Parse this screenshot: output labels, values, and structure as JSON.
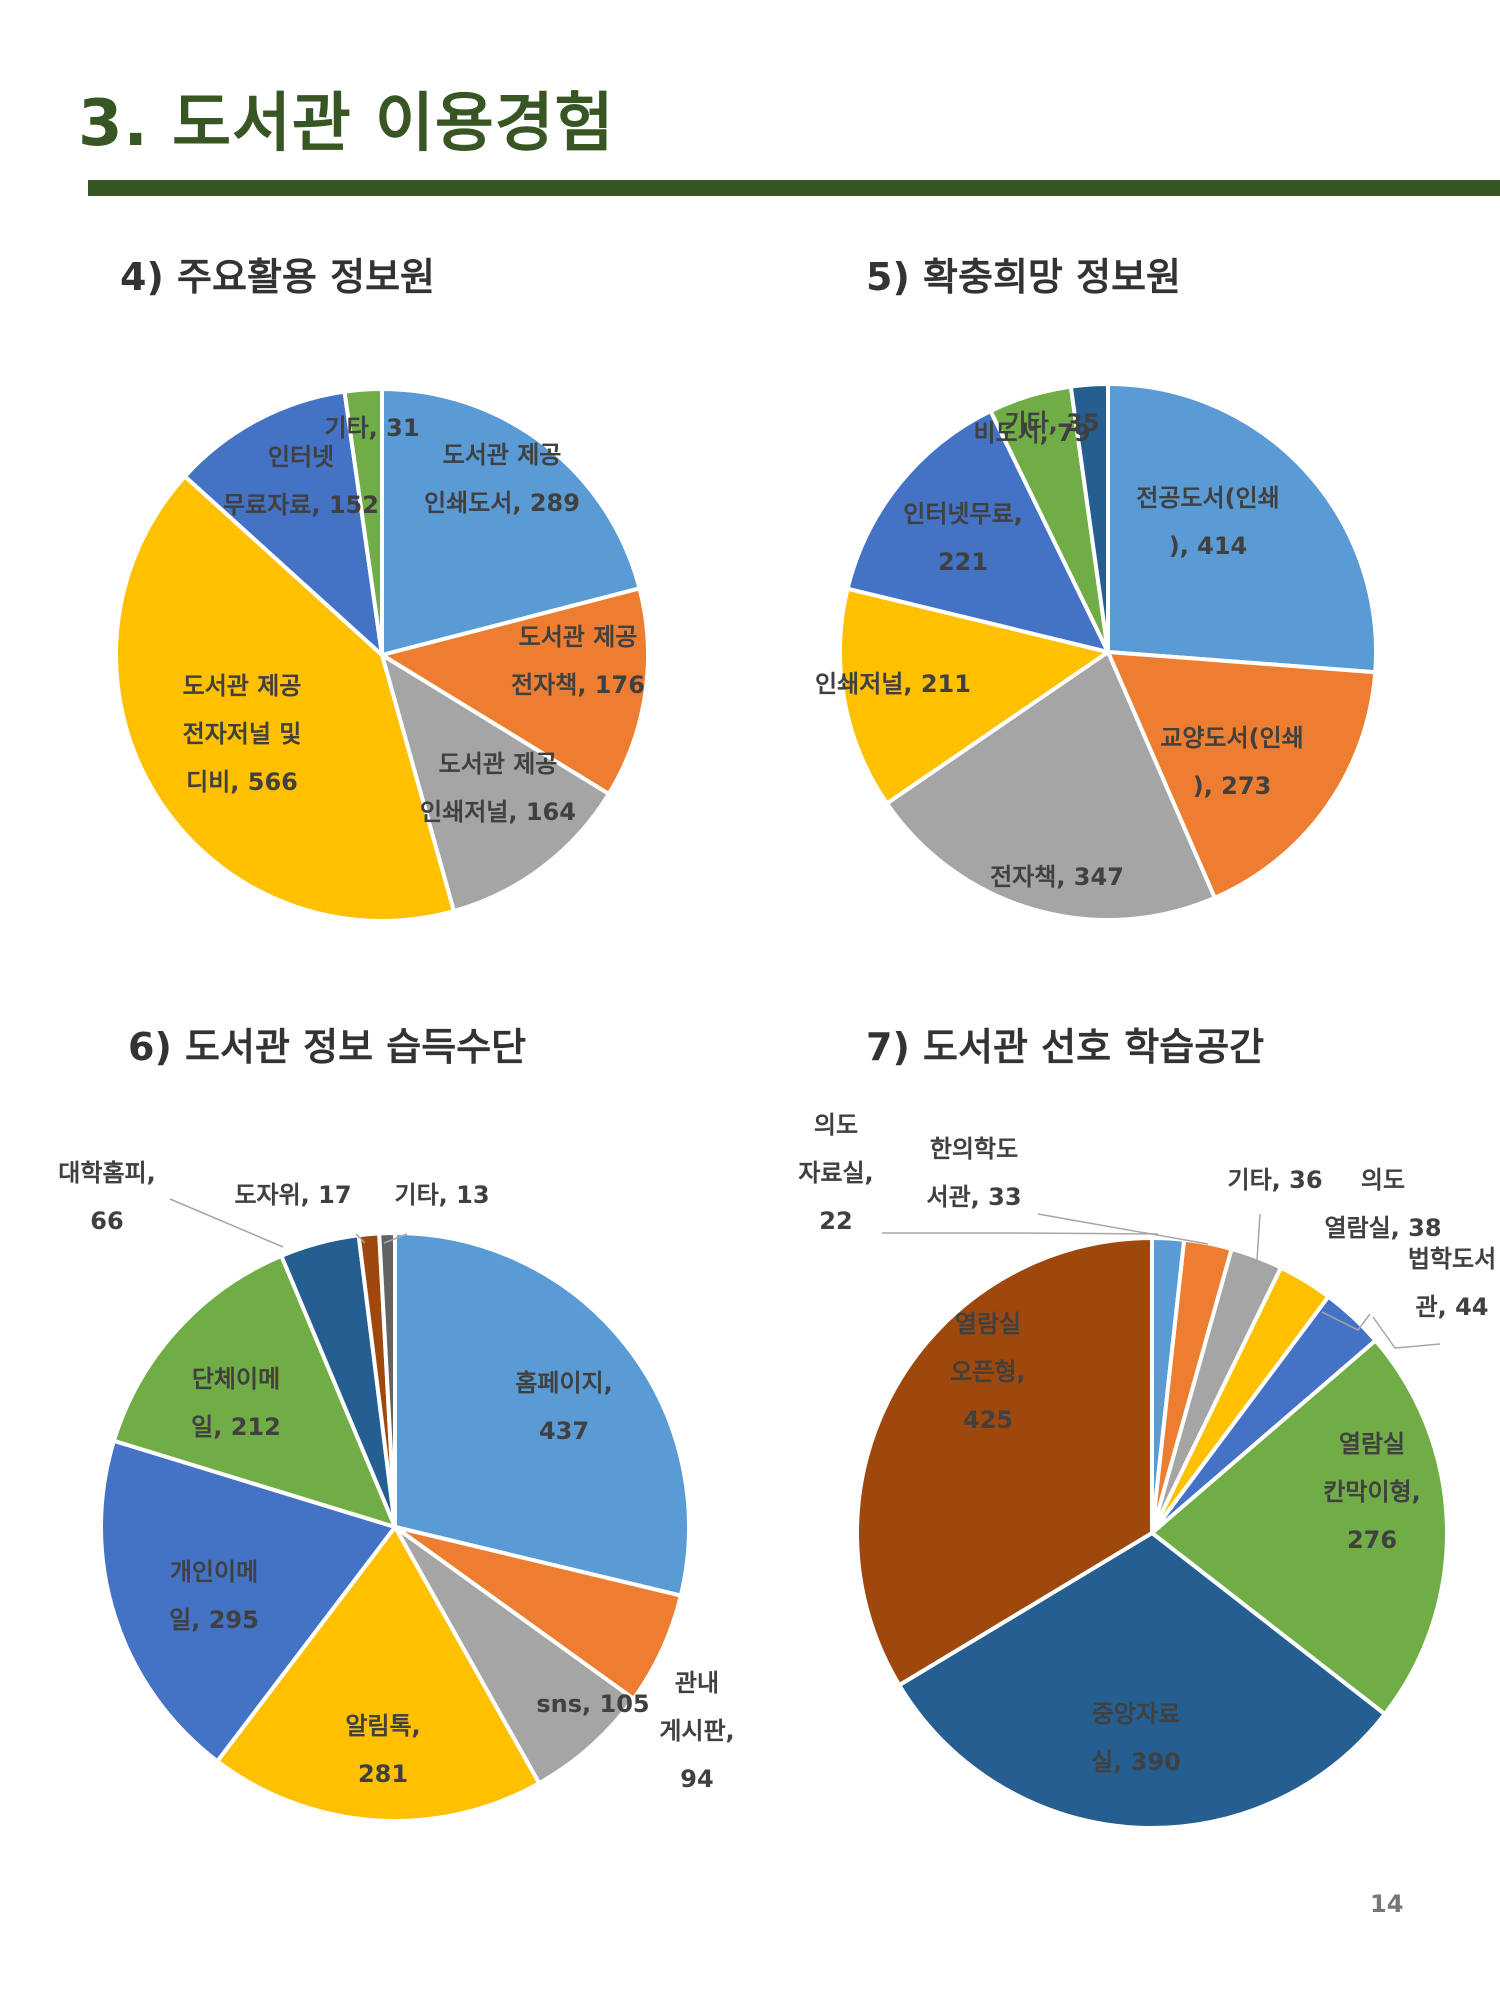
{
  "page": {
    "title": "3. 도서관 이용경험",
    "page_number": "14"
  },
  "chart_data": [
    {
      "type": "pie",
      "title": "4) 주요활용 정보원",
      "slices": [
        {
          "label": "도서관 제공 인쇄도서",
          "value": 289,
          "color": "#5B9BD5",
          "lines": [
            "도서관 제공",
            "인쇄도서, 289"
          ]
        },
        {
          "label": "도서관 제공 전자책",
          "value": 176,
          "color": "#ED7D31",
          "lines": [
            "도서관 제공",
            "전자책, 176"
          ]
        },
        {
          "label": "도서관 제공 인쇄저널",
          "value": 164,
          "color": "#A5A5A5",
          "lines": [
            "도서관 제공",
            "인쇄저널, 164"
          ]
        },
        {
          "label": "도서관 제공 전자저널 및 디비",
          "value": 566,
          "color": "#FFC000",
          "lines": [
            "도서관 제공",
            "전자저널 및",
            "디비, 566"
          ]
        },
        {
          "label": "인터넷 무료자료",
          "value": 152,
          "color": "#4472C4",
          "lines": [
            "인터넷",
            "무료자료, 152"
          ]
        },
        {
          "label": "기타",
          "value": 31,
          "color": "#70AD47",
          "lines": [
            "기타, 31"
          ]
        }
      ]
    },
    {
      "type": "pie",
      "title": "5) 확충희망 정보원",
      "slices": [
        {
          "label": "전공도서(인쇄)",
          "value": 414,
          "color": "#5B9BD5",
          "lines": [
            "전공도서(인쇄",
            "), 414"
          ]
        },
        {
          "label": "교양도서(인쇄)",
          "value": 273,
          "color": "#ED7D31",
          "lines": [
            "교양도서(인쇄",
            "), 273"
          ]
        },
        {
          "label": "전자책",
          "value": 347,
          "color": "#A5A5A5",
          "lines": [
            "전자책, 347"
          ]
        },
        {
          "label": "인쇄저널",
          "value": 211,
          "color": "#FFC000",
          "lines": [
            "인쇄저널, 211"
          ]
        },
        {
          "label": "인터넷무료",
          "value": 221,
          "color": "#4472C4",
          "lines": [
            "인터넷무료,",
            "221"
          ]
        },
        {
          "label": "비도서",
          "value": 79,
          "color": "#70AD47",
          "lines": [
            "비도서, 79"
          ]
        },
        {
          "label": "기타",
          "value": 35,
          "color": "#255E91",
          "lines": [
            "기타, 35"
          ]
        }
      ]
    },
    {
      "type": "pie",
      "title": "6) 도서관 정보 습득수단",
      "slices": [
        {
          "label": "홈페이지",
          "value": 437,
          "color": "#5B9BD5",
          "lines": [
            "홈페이지,",
            "437"
          ]
        },
        {
          "label": "관내 게시판",
          "value": 94,
          "color": "#ED7D31",
          "lines": [
            "관내",
            "게시판,",
            "94"
          ]
        },
        {
          "label": "sns",
          "value": 105,
          "color": "#A5A5A5",
          "lines": [
            "sns, 105"
          ]
        },
        {
          "label": "알림톡",
          "value": 281,
          "color": "#FFC000",
          "lines": [
            "알림톡,",
            "281"
          ]
        },
        {
          "label": "개인이메일",
          "value": 295,
          "color": "#4472C4",
          "lines": [
            "개인이메",
            "일, 295"
          ]
        },
        {
          "label": "단체이메일",
          "value": 212,
          "color": "#70AD47",
          "lines": [
            "단체이메",
            "일, 212"
          ]
        },
        {
          "label": "대학홈피",
          "value": 66,
          "color": "#255E91",
          "lines": [
            "대학홈피,",
            "66"
          ]
        },
        {
          "label": "도자위",
          "value": 17,
          "color": "#9E480E",
          "lines": [
            "도자위, 17"
          ]
        },
        {
          "label": "기타",
          "value": 13,
          "color": "#636363",
          "lines": [
            "기타, 13"
          ]
        }
      ]
    },
    {
      "type": "pie",
      "title": "7) 도서관 선호 학습공간",
      "slices": [
        {
          "label": "의도 자료실",
          "value": 22,
          "color": "#5B9BD5",
          "lines": [
            "의도",
            "자료실,",
            "22"
          ]
        },
        {
          "label": "한의학도서관",
          "value": 33,
          "color": "#ED7D31",
          "lines": [
            "한의학도",
            "서관, 33"
          ]
        },
        {
          "label": "기타",
          "value": 36,
          "color": "#A5A5A5",
          "lines": [
            "기타, 36"
          ]
        },
        {
          "label": "의도 열람실",
          "value": 38,
          "color": "#FFC000",
          "lines": [
            "의도",
            "열람실, 38"
          ]
        },
        {
          "label": "법학도서관",
          "value": 44,
          "color": "#4472C4",
          "lines": [
            "법학도서",
            "관, 44"
          ]
        },
        {
          "label": "열람실 칸막이형",
          "value": 276,
          "color": "#70AD47",
          "lines": [
            "열람실",
            "칸막이형,",
            "276"
          ]
        },
        {
          "label": "중앙자료실",
          "value": 390,
          "color": "#255E91",
          "lines": [
            "중앙자료",
            "실, 390"
          ],
          "label_color": "#FFFFFF"
        },
        {
          "label": "열람실 오픈형",
          "value": 425,
          "color": "#9E480E",
          "lines": [
            "열람실",
            "오픈형,",
            "425"
          ],
          "label_color": "#FFFFFF"
        }
      ]
    }
  ]
}
